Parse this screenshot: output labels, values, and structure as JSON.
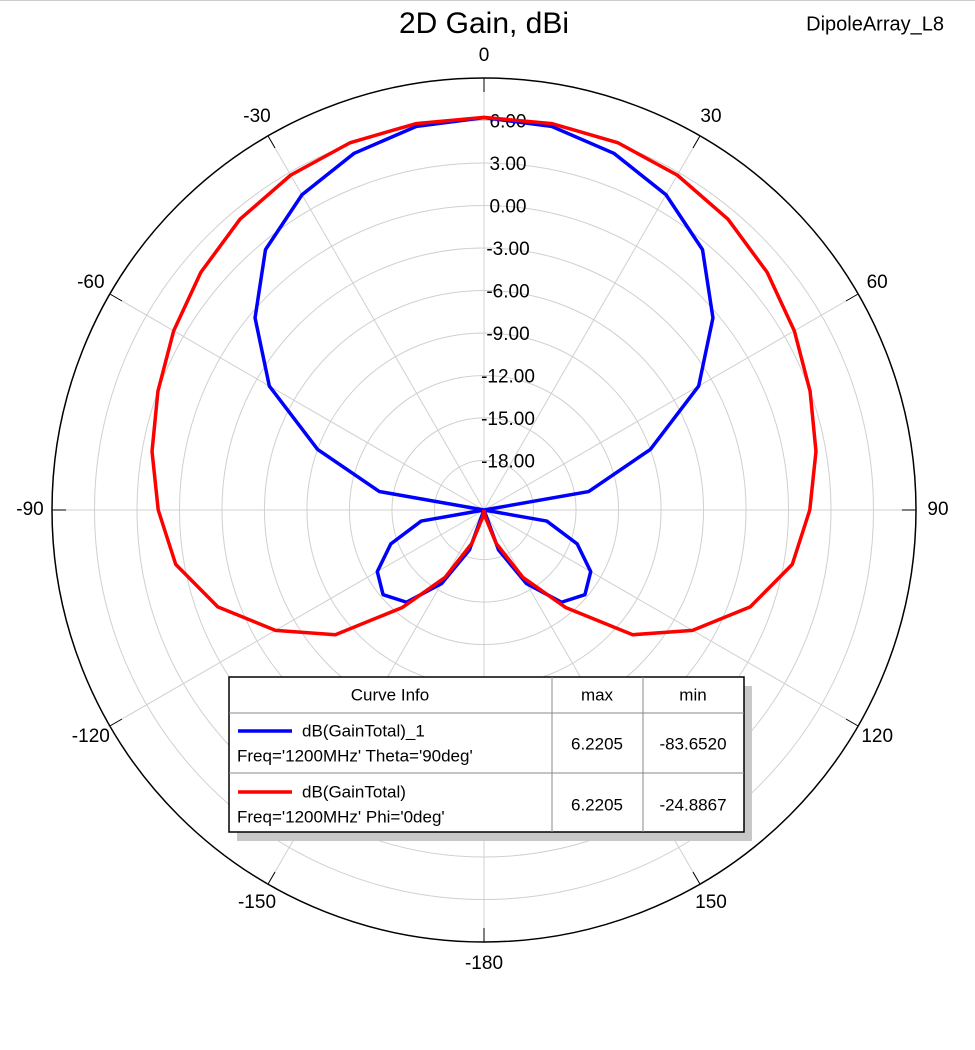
{
  "chart_data": {
    "type": "polar",
    "title": "2D Gain, dBi",
    "subtitle": "DipoleArray_L8",
    "theta": [
      -180,
      -170,
      -160,
      -150,
      -140,
      -130,
      -120,
      -110,
      -100,
      -90,
      -80,
      -70,
      -60,
      -50,
      -40,
      -30,
      -20,
      -10,
      0,
      10,
      20,
      30,
      40,
      50,
      60,
      70,
      80,
      90,
      100,
      110,
      120,
      130,
      140,
      150,
      160,
      170,
      180
    ],
    "series": [
      {
        "name": "dB(GainTotal)_1",
        "color": "#0000ff",
        "values": [
          -21.5,
          -21.5,
          -18.5,
          -15.5,
          -13,
          -12.2,
          -12.8,
          -14.5,
          -17,
          -21.5,
          -14,
          -9,
          -4,
          -0.4,
          2.5,
          4.2,
          5.3,
          6.0,
          6.2,
          6.0,
          5.3,
          4.2,
          2.5,
          -0.4,
          -4,
          -9,
          -14,
          -21.5,
          -17,
          -14.5,
          -12.8,
          -12.2,
          -13,
          -15.5,
          -18.5,
          -21.5,
          -21.5
        ]
      },
      {
        "name": "dB(GainTotal)",
        "color": "#ff0000",
        "values": [
          -21.5,
          -21,
          -19,
          -16,
          -12.5,
          -7.8,
          -4.5,
          -1.5,
          0.6,
          1.5,
          2.3,
          3.0,
          3.8,
          4.6,
          5.3,
          5.8,
          6.1,
          6.2,
          6.22,
          6.2,
          6.1,
          5.8,
          5.3,
          4.6,
          3.8,
          3.0,
          2.3,
          1.5,
          0.6,
          -1.5,
          -4.5,
          -7.8,
          -12.5,
          -16,
          -19,
          -21,
          -21.5
        ]
      }
    ],
    "rlim": [
      -21.5,
      9
    ],
    "rticks": [
      {
        "value": 6,
        "label": "6.00"
      },
      {
        "value": 3,
        "label": "3.00"
      },
      {
        "value": 0,
        "label": "0.00"
      },
      {
        "value": -3,
        "label": "-3.00"
      },
      {
        "value": -6,
        "label": "-6.00"
      },
      {
        "value": -9,
        "label": "-9.00"
      },
      {
        "value": -12,
        "label": "-12.00"
      },
      {
        "value": -15,
        "label": "-15.00"
      },
      {
        "value": -18,
        "label": "-18.00"
      }
    ],
    "thetaticks": [
      0,
      30,
      60,
      90,
      120,
      150,
      -180,
      -150,
      -120,
      -90,
      -60,
      -30
    ],
    "grid": true,
    "curve_info": {
      "columns": [
        "Curve Info",
        "max",
        "min"
      ],
      "rows": [
        [
          "Freq='1200MHz' Theta='90deg'",
          "6.2205",
          "-83.6520"
        ],
        [
          "Freq='1200MHz' Phi='0deg'",
          "6.2205",
          "-24.8867"
        ]
      ]
    }
  }
}
